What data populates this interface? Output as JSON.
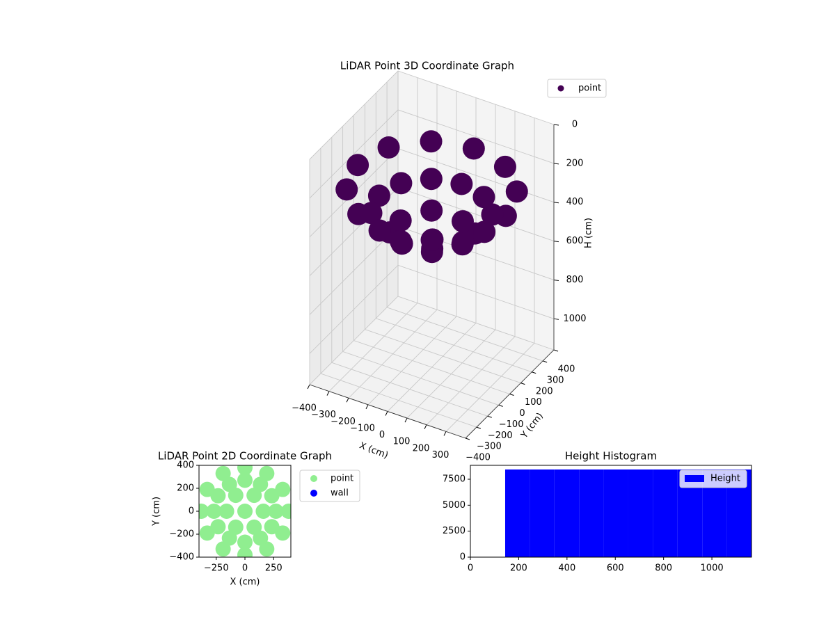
{
  "chart_data": [
    {
      "type": "scatter3d",
      "title": "LiDAR Point 3D Coordinate Graph",
      "xlabel": "X (cm)",
      "ylabel": "Y (cm)",
      "zlabel": "H (cm)",
      "xlim": [
        -400,
        400
      ],
      "ylim": [
        -400,
        400
      ],
      "zlim": [
        0,
        1160
      ],
      "zinverted": true,
      "grid": true,
      "xticks": [
        {
          "value": -400,
          "label": "−400"
        },
        {
          "value": -300,
          "label": "−300"
        },
        {
          "value": -200,
          "label": "−200"
        },
        {
          "value": -100,
          "label": "−100"
        },
        0,
        100,
        200,
        300
      ],
      "yticks": [
        {
          "value": -400,
          "label": "−400"
        },
        {
          "value": -300,
          "label": "−300"
        },
        {
          "value": -200,
          "label": "−200"
        },
        {
          "value": -100,
          "label": "−100"
        },
        0,
        100,
        200,
        300,
        400
      ],
      "zticks": [
        0,
        200,
        400,
        600,
        800,
        1000
      ],
      "legend": "upper right",
      "series": [
        {
          "name": "point",
          "color": "#440154",
          "x": [
            380,
            329,
            190,
            0,
            -190,
            -329,
            -380,
            -329,
            -190,
            0,
            190,
            329,
            270,
            234,
            135,
            0,
            -135,
            -234,
            -270,
            -234,
            -135,
            0,
            135,
            234,
            160,
            80,
            -80,
            -160,
            -80,
            80,
            0
          ],
          "y": [
            0,
            190,
            329,
            380,
            329,
            190,
            0,
            -190,
            -329,
            -380,
            -329,
            -190,
            0,
            135,
            234,
            270,
            234,
            135,
            0,
            -135,
            -234,
            -270,
            -234,
            -135,
            0,
            139,
            139,
            0,
            -139,
            -139,
            0
          ],
          "z": [
            250,
            250,
            250,
            250,
            250,
            250,
            250,
            250,
            250,
            250,
            250,
            250,
            370,
            370,
            370,
            370,
            370,
            370,
            370,
            370,
            370,
            370,
            370,
            370,
            460,
            460,
            460,
            460,
            460,
            460,
            505
          ]
        }
      ]
    },
    {
      "type": "scatter",
      "title": "LiDAR Point 2D Coordinate Graph",
      "xlabel": "X (cm)",
      "ylabel": "Y (cm)",
      "xlim": [
        -400,
        400
      ],
      "ylim": [
        -400,
        400
      ],
      "xticks": [
        {
          "value": -250,
          "label": "−250"
        },
        0,
        250
      ],
      "yticks": [
        {
          "value": -400,
          "label": "−400"
        },
        {
          "value": -200,
          "label": "−200"
        },
        0,
        200,
        400
      ],
      "legend": "outside upper right",
      "series": [
        {
          "name": "point",
          "color": "#90ee90",
          "x": [
            380,
            329,
            190,
            0,
            -190,
            -329,
            -380,
            -329,
            -190,
            0,
            190,
            329,
            270,
            234,
            135,
            0,
            -135,
            -234,
            -270,
            -234,
            -135,
            0,
            135,
            234,
            160,
            80,
            -80,
            -160,
            -80,
            80,
            0
          ],
          "y": [
            0,
            190,
            329,
            380,
            329,
            190,
            0,
            -190,
            -329,
            -380,
            -329,
            -190,
            0,
            135,
            234,
            270,
            234,
            135,
            0,
            -135,
            -234,
            -270,
            -234,
            -135,
            0,
            139,
            139,
            0,
            -139,
            -139,
            0
          ]
        },
        {
          "name": "wall",
          "color": "#0000ff",
          "x": [],
          "y": []
        }
      ]
    },
    {
      "type": "histogram",
      "title": "Height Histogram",
      "xlim": [
        0,
        1164
      ],
      "ylim": [
        0,
        8840
      ],
      "xticks": [
        0,
        200,
        400,
        600,
        800,
        1000
      ],
      "yticks": [
        0,
        2500,
        5000,
        7500
      ],
      "legend": "upper right",
      "bins": [
        144,
        246,
        348,
        450,
        552,
        654,
        756,
        858,
        960,
        1062,
        1164
      ],
      "series": [
        {
          "name": "Height",
          "color": "#0000ff",
          "values": [
            8440,
            8440,
            8440,
            8440,
            8440,
            8440,
            8440,
            8440,
            8440,
            8440
          ]
        }
      ]
    }
  ]
}
